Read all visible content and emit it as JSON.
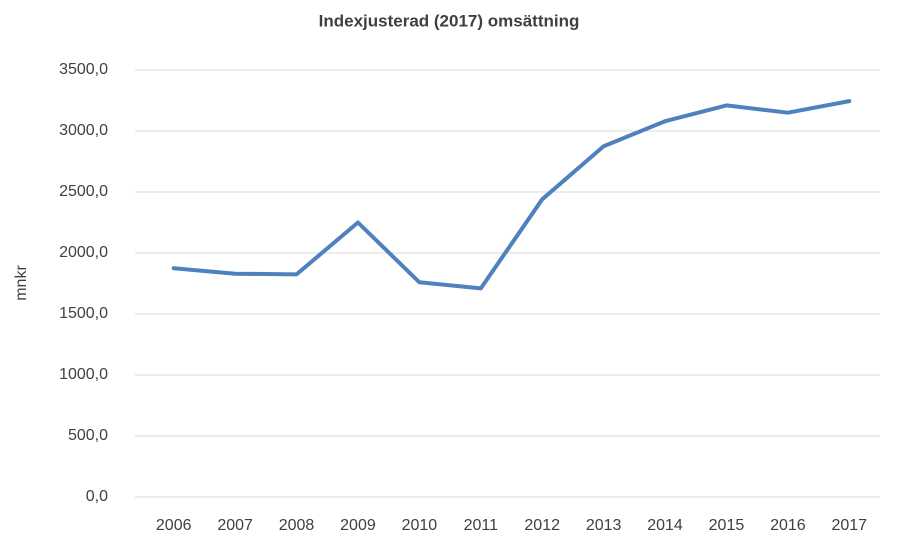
{
  "chart_data": {
    "type": "line",
    "title": "Indexjusterad (2017) omsättning",
    "y_label": "mnkr",
    "categories": [
      "2006",
      "2007",
      "2008",
      "2009",
      "2010",
      "2011",
      "2012",
      "2013",
      "2014",
      "2015",
      "2016",
      "2017"
    ],
    "series": [
      {
        "name": "Omsättning",
        "color": "#4f81bd",
        "values": [
          1875,
          1830,
          1825,
          2250,
          1760,
          1710,
          2440,
          2875,
          3080,
          3210,
          3150,
          3245
        ]
      }
    ],
    "ylim": [
      0,
      3500
    ],
    "yticks": [
      {
        "value": 0,
        "label": "0,0"
      },
      {
        "value": 500,
        "label": "500,0"
      },
      {
        "value": 1000,
        "label": "1000,0"
      },
      {
        "value": 1500,
        "label": "1500,0"
      },
      {
        "value": 2000,
        "label": "2000,0"
      },
      {
        "value": 2500,
        "label": "2500,0"
      },
      {
        "value": 3000,
        "label": "3000,0"
      },
      {
        "value": 3500,
        "label": "3500,0"
      }
    ],
    "grid": true,
    "legend": false
  }
}
